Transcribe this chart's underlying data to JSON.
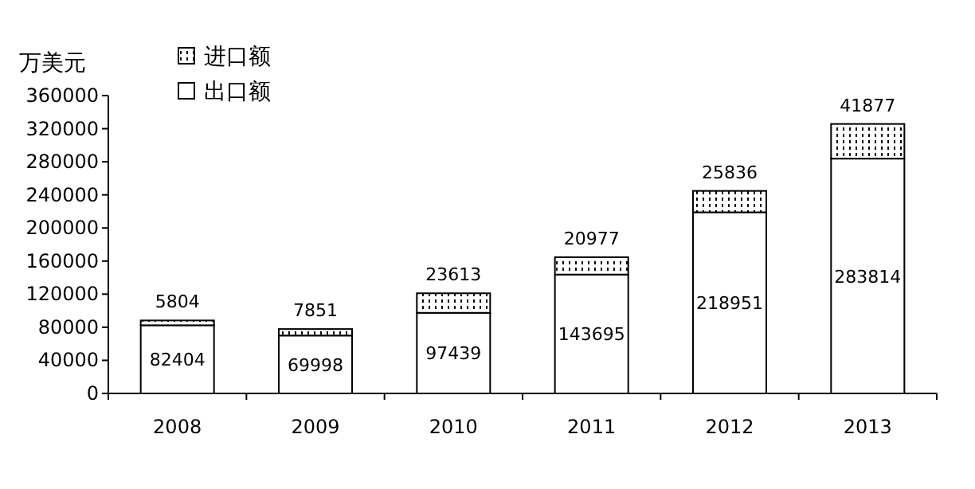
{
  "chart_data": {
    "type": "bar",
    "stacked": true,
    "ylabel": "万美元",
    "categories": [
      "2008",
      "2009",
      "2010",
      "2011",
      "2012",
      "2013"
    ],
    "series": [
      {
        "name": "出口额",
        "color": "#ffffff",
        "values": [
          82404,
          69998,
          97439,
          143695,
          218951,
          283814
        ]
      },
      {
        "name": "进口额",
        "color": "#000000",
        "values": [
          5804,
          7851,
          23613,
          20977,
          25836,
          41877
        ]
      }
    ],
    "ylim": [
      0,
      360000
    ],
    "yticks": [
      0,
      40000,
      80000,
      120000,
      160000,
      200000,
      240000,
      280000,
      320000,
      360000
    ],
    "grid": false,
    "legend": "top left",
    "data_labels": true
  }
}
